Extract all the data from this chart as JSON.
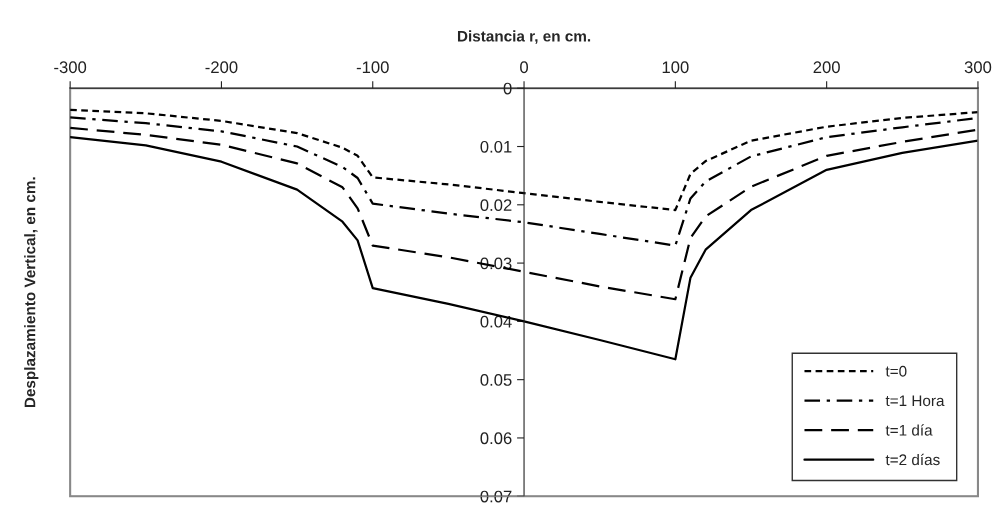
{
  "chart_data": {
    "type": "line",
    "xlabel": "Distancia r, en cm.",
    "ylabel": "Desplazamiento Vertical, en cm.",
    "x": [
      -300,
      -250,
      -200,
      -150,
      -120,
      -110,
      -100,
      -50,
      0,
      50,
      100,
      110,
      120,
      150,
      200,
      250,
      300
    ],
    "series": [
      {
        "name": "t=0",
        "color": "#000000",
        "line_style": "dotted",
        "values": [
          0.0037,
          0.0043,
          0.0056,
          0.0077,
          0.0102,
          0.0116,
          0.0153,
          0.0165,
          0.018,
          0.0195,
          0.0209,
          0.0147,
          0.0125,
          0.009,
          0.0066,
          0.0051,
          0.0041
        ]
      },
      {
        "name": "t=1 Hora",
        "color": "#000000",
        "line_style": "dashdot",
        "values": [
          0.005,
          0.006,
          0.0074,
          0.01,
          0.0135,
          0.0154,
          0.0198,
          0.0215,
          0.023,
          0.025,
          0.027,
          0.0189,
          0.016,
          0.0117,
          0.0084,
          0.0067,
          0.0051
        ]
      },
      {
        "name": "t=1 día",
        "color": "#000000",
        "line_style": "dashed",
        "values": [
          0.0068,
          0.008,
          0.0097,
          0.0129,
          0.017,
          0.0206,
          0.027,
          0.029,
          0.0315,
          0.034,
          0.0362,
          0.0257,
          0.022,
          0.0169,
          0.0116,
          0.0092,
          0.0071
        ]
      },
      {
        "name": "t=2 días",
        "color": "#000000",
        "line_style": "solid",
        "values": [
          0.0084,
          0.0098,
          0.0126,
          0.0174,
          0.0229,
          0.0261,
          0.0343,
          0.037,
          0.04,
          0.0432,
          0.0465,
          0.0325,
          0.0277,
          0.0209,
          0.014,
          0.0111,
          0.009
        ]
      }
    ],
    "xlim": [
      -300,
      300
    ],
    "xticks": [
      -300,
      -200,
      -100,
      0,
      100,
      200,
      300
    ],
    "ylim": [
      0.07,
      0
    ],
    "yticks": [
      0,
      0.01,
      0.02,
      0.03,
      0.04,
      0.05,
      0.06,
      0.07
    ],
    "grid": false,
    "legend": "bottom right"
  }
}
